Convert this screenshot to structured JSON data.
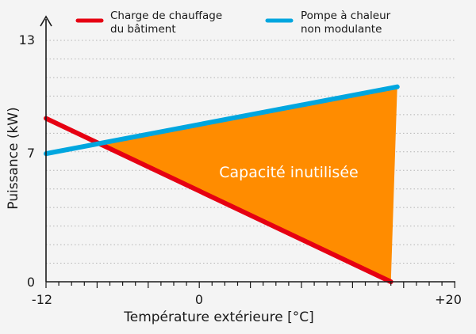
{
  "chart_data": {
    "type": "line",
    "xlabel": "Température extérieure [°C]",
    "ylabel": "Puissance (kW)",
    "x_tick_labels": [
      "-12",
      "0",
      "+20"
    ],
    "y_tick_labels": [
      "0",
      "7",
      "13"
    ],
    "xlim": [
      -12,
      20
    ],
    "ylim": [
      0,
      14
    ],
    "grid": true,
    "legend_position": "top",
    "series": [
      {
        "name": "Charge de chauffage du bâtiment",
        "color": "#e60012",
        "x": [
          -12,
          15
        ],
        "y": [
          8.8,
          0
        ]
      },
      {
        "name": "Pompe à chaleur non modulante",
        "color": "#00a6df",
        "x": [
          -12,
          15.5
        ],
        "y": [
          6.9,
          10.5
        ]
      }
    ],
    "shaded_region": {
      "color": "#ff8c00",
      "label": "Capacité inutilisée"
    },
    "legend": [
      {
        "line1": "Charge de chauffage",
        "line2": "du bâtiment",
        "color": "#e60012"
      },
      {
        "line1": "Pompe à chaleur",
        "line2": "non modulante",
        "color": "#00a6df"
      }
    ]
  }
}
